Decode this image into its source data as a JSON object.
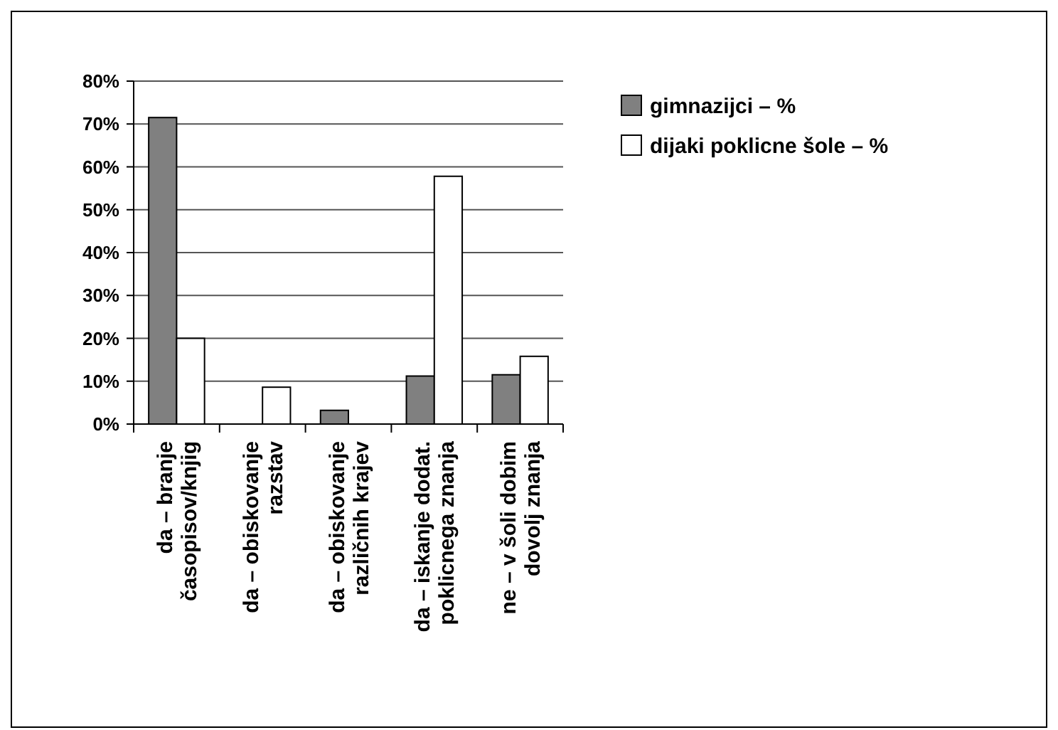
{
  "chart_data": {
    "type": "bar",
    "categories": [
      "da – branje\nčasopisov/knjig",
      "da – obiskovanje\nrazstav",
      "da – obiskovanje\nrazličnih krajev",
      "da – iskanje dodat.\npoklicnega znanja",
      "ne – v šoli dobim\ndovolj znanja"
    ],
    "series": [
      {
        "name": "gimnazijci – %",
        "color": "#808080",
        "values": [
          71.5,
          0,
          3.2,
          11.2,
          11.5
        ]
      },
      {
        "name": "dijaki poklicne šole – %",
        "color": "#ffffff",
        "values": [
          20,
          8.6,
          0,
          57.8,
          15.8
        ]
      }
    ],
    "ylim": [
      0,
      80
    ],
    "yticks": [
      {
        "value": 0,
        "label": "0%"
      },
      {
        "value": 10,
        "label": "10%"
      },
      {
        "value": 20,
        "label": "20%"
      },
      {
        "value": 30,
        "label": "30%"
      },
      {
        "value": 40,
        "label": "40%"
      },
      {
        "value": 50,
        "label": "50%"
      },
      {
        "value": 60,
        "label": "60%"
      },
      {
        "value": 70,
        "label": "70%"
      },
      {
        "value": 80,
        "label": "80%"
      }
    ],
    "grid": "y",
    "legend": "right"
  }
}
